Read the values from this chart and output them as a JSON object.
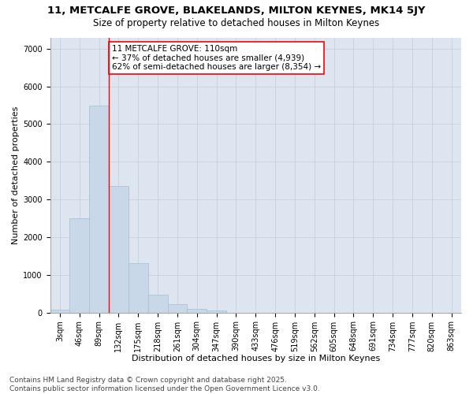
{
  "title": "11, METCALFE GROVE, BLAKELANDS, MILTON KEYNES, MK14 5JY",
  "subtitle": "Size of property relative to detached houses in Milton Keynes",
  "xlabel": "Distribution of detached houses by size in Milton Keynes",
  "ylabel": "Number of detached properties",
  "categories": [
    "3sqm",
    "46sqm",
    "89sqm",
    "132sqm",
    "175sqm",
    "218sqm",
    "261sqm",
    "304sqm",
    "347sqm",
    "390sqm",
    "433sqm",
    "476sqm",
    "519sqm",
    "562sqm",
    "605sqm",
    "648sqm",
    "691sqm",
    "734sqm",
    "777sqm",
    "820sqm",
    "863sqm"
  ],
  "values": [
    80,
    2500,
    5500,
    3350,
    1300,
    480,
    220,
    90,
    60,
    0,
    0,
    0,
    0,
    0,
    0,
    0,
    0,
    0,
    0,
    0,
    0
  ],
  "bar_color": "#c8d8e8",
  "bar_edgecolor": "#a8bece",
  "vline_x": 2.5,
  "vline_color": "red",
  "annotation_text": "11 METCALFE GROVE: 110sqm\n← 37% of detached houses are smaller (4,939)\n62% of semi-detached houses are larger (8,354) →",
  "annotation_box_facecolor": "white",
  "annotation_box_edgecolor": "red",
  "ylim": [
    0,
    7300
  ],
  "yticks": [
    0,
    1000,
    2000,
    3000,
    4000,
    5000,
    6000,
    7000
  ],
  "grid_color": "#c8d0dc",
  "background_color": "#dde6f0",
  "footer_text": "Contains HM Land Registry data © Crown copyright and database right 2025.\nContains public sector information licensed under the Open Government Licence v3.0.",
  "title_fontsize": 9.5,
  "subtitle_fontsize": 8.5,
  "xlabel_fontsize": 8,
  "ylabel_fontsize": 8,
  "tick_fontsize": 7,
  "annotation_fontsize": 7.5,
  "footer_fontsize": 6.5
}
